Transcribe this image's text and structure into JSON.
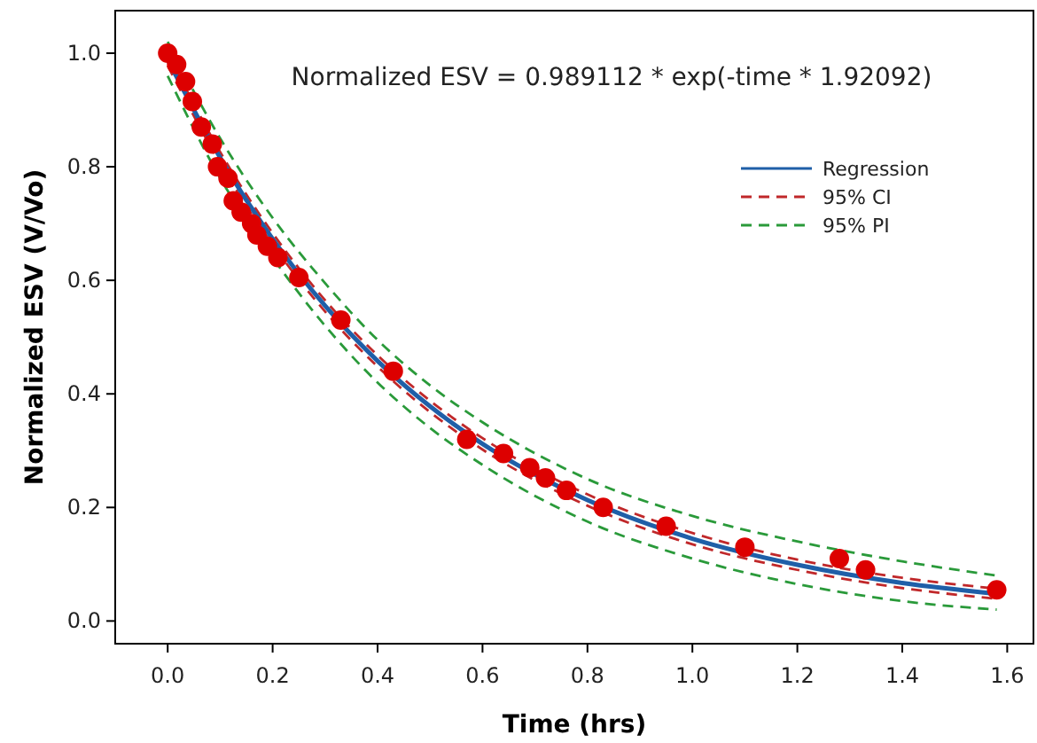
{
  "chart_data": {
    "type": "scatter",
    "xlabel": "Time (hrs)",
    "ylabel": "Normalized ESV (V/Vo)",
    "annotations": [
      "Normalized ESV = 0.989112 * exp(-time * 1.92092)"
    ],
    "xlim": [
      -0.1,
      1.65
    ],
    "ylim": [
      -0.04,
      1.075
    ],
    "xticks": [
      {
        "value": 0,
        "label": "0.0"
      },
      0.2,
      0.4,
      0.6,
      0.8,
      {
        "value": 1,
        "label": "1.0"
      },
      1.2,
      1.4,
      1.6
    ],
    "yticks": [
      {
        "value": 0,
        "label": "0.0"
      },
      0.2,
      0.4,
      0.6,
      0.8,
      {
        "value": 1,
        "label": "1.0"
      }
    ],
    "grid": false,
    "legend": "top right",
    "series": [
      {
        "type": "line",
        "name": "95% PI",
        "color": "#2a9a3a",
        "line_style": "dashed",
        "x": [
          0,
          0.1,
          0.2,
          0.3,
          0.4,
          0.5,
          0.6,
          0.8,
          1,
          1.2,
          1.4,
          1.58
        ],
        "values": [
          1.02,
          0.85,
          0.71,
          0.595,
          0.495,
          0.415,
          0.35,
          0.25,
          0.185,
          0.14,
          0.105,
          0.08
        ]
      },
      {
        "type": "line",
        "color": "#2a9a3a",
        "line_style": "dashed",
        "x": [
          0,
          0.1,
          0.2,
          0.3,
          0.4,
          0.5,
          0.6,
          0.8,
          1,
          1.2,
          1.4,
          1.58
        ],
        "values": [
          0.96,
          0.78,
          0.64,
          0.52,
          0.42,
          0.34,
          0.275,
          0.175,
          0.11,
          0.065,
          0.035,
          0.02
        ]
      },
      {
        "type": "line",
        "name": "95% CI",
        "color": "#c0282a",
        "line_style": "dashed",
        "x": [
          0,
          0.1,
          0.2,
          0.3,
          0.4,
          0.5,
          0.6,
          0.8,
          1,
          1.2,
          1.4,
          1.58
        ],
        "values": [
          1.0,
          0.826,
          0.683,
          0.565,
          0.468,
          0.388,
          0.322,
          0.223,
          0.155,
          0.108,
          0.076,
          0.057
        ]
      },
      {
        "type": "line",
        "color": "#c0282a",
        "line_style": "dashed",
        "x": [
          0,
          0.1,
          0.2,
          0.3,
          0.4,
          0.5,
          0.6,
          0.8,
          1,
          1.2,
          1.4,
          1.58
        ],
        "values": [
          0.978,
          0.806,
          0.663,
          0.545,
          0.448,
          0.368,
          0.302,
          0.203,
          0.135,
          0.09,
          0.058,
          0.039
        ]
      },
      {
        "type": "line",
        "name": "Regression",
        "color": "#1f5fa8",
        "line_style": "solid",
        "x": [
          0,
          0.1,
          0.2,
          0.3,
          0.4,
          0.5,
          0.6,
          0.8,
          1,
          1.2,
          1.4,
          1.58
        ],
        "values": [
          0.989,
          0.816,
          0.673,
          0.555,
          0.458,
          0.378,
          0.312,
          0.213,
          0.145,
          0.099,
          0.067,
          0.048
        ]
      },
      {
        "color": "#dd0000",
        "marker": "circle",
        "x": [
          0,
          0.017,
          0.034,
          0.047,
          0.064,
          0.085,
          0.095,
          0.115,
          0.125,
          0.14,
          0.16,
          0.17,
          0.19,
          0.21,
          0.25,
          0.33,
          0.43,
          0.57,
          0.64,
          0.69,
          0.72,
          0.76,
          0.83,
          0.95,
          1.1,
          1.28,
          1.33,
          1.58
        ],
        "values": [
          1.0,
          0.98,
          0.95,
          0.915,
          0.87,
          0.84,
          0.8,
          0.78,
          0.74,
          0.72,
          0.7,
          0.68,
          0.66,
          0.64,
          0.605,
          0.53,
          0.44,
          0.32,
          0.295,
          0.27,
          0.252,
          0.23,
          0.2,
          0.167,
          0.13,
          0.11,
          0.09,
          0.055
        ]
      }
    ]
  }
}
